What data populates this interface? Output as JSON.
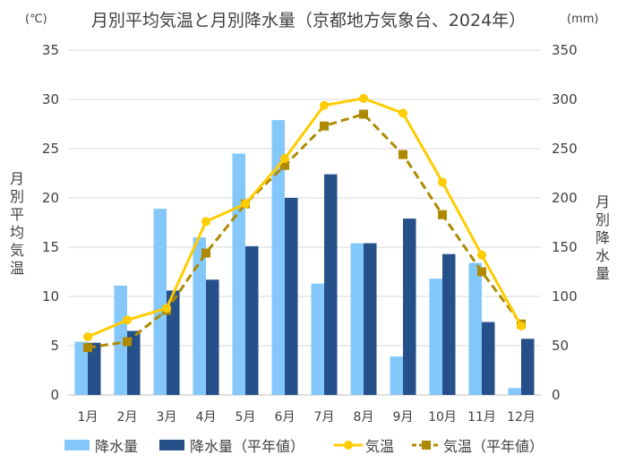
{
  "title": "月別平均気温と月別降水量（京都地方気象台、2024年）",
  "unit_left": "(℃)",
  "unit_right": "(mm)",
  "ylabel_left": "月別平均気温",
  "ylabel_right": "月別降水量",
  "colors": {
    "precip": "#84c8fb",
    "precip_normal": "#26508a",
    "temp": "#ffcc00",
    "temp_normal": "#ae8a00",
    "grid": "#d9d9d9",
    "text": "#404040"
  },
  "chart_data": {
    "type": "bar",
    "categories": [
      "1月",
      "2月",
      "3月",
      "4月",
      "5月",
      "6月",
      "7月",
      "8月",
      "9月",
      "10月",
      "11月",
      "12月"
    ],
    "series": [
      {
        "name": "降水量",
        "kind": "bar",
        "axis": "right",
        "values": [
          54,
          111,
          189,
          160,
          245,
          279,
          113,
          154,
          39,
          118,
          134,
          7
        ]
      },
      {
        "name": "降水量（平年値）",
        "kind": "bar",
        "axis": "right",
        "values": [
          53,
          65,
          106,
          117,
          151,
          200,
          224,
          154,
          179,
          143,
          74,
          57
        ]
      },
      {
        "name": "気温",
        "kind": "line",
        "axis": "left",
        "values": [
          5.9,
          7.6,
          8.8,
          17.6,
          19.4,
          24.0,
          29.4,
          30.1,
          28.6,
          21.6,
          14.2,
          7.0
        ]
      },
      {
        "name": "気温（平年値）",
        "kind": "line",
        "axis": "left",
        "values": [
          4.8,
          5.4,
          8.6,
          14.4,
          19.4,
          23.3,
          27.3,
          28.5,
          24.4,
          18.3,
          12.5,
          7.2
        ]
      }
    ],
    "ylim_left": [
      0,
      35
    ],
    "yticks_left": [
      0,
      5,
      10,
      15,
      20,
      25,
      30,
      35
    ],
    "ylim_right": [
      0,
      350
    ],
    "yticks_right": [
      0,
      50,
      100,
      150,
      200,
      250,
      300,
      350
    ],
    "grid": true,
    "legend": "bottom"
  }
}
